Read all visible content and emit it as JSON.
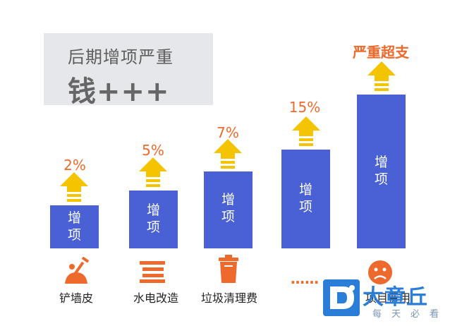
{
  "title": {
    "line1": "后期增项严重",
    "line2": "钱+++"
  },
  "colors": {
    "bar": "#4961d4",
    "arrow": "#f5c400",
    "accent": "#ee6a2c",
    "watermark": "#2b7ed8"
  },
  "bars": [
    {
      "label_line1": "增",
      "label_line2": "项",
      "percent": "2%"
    },
    {
      "label_line1": "增",
      "label_line2": "项",
      "percent": "5%"
    },
    {
      "label_line1": "增",
      "label_line2": "项",
      "percent": "7%"
    },
    {
      "label_line1": "增",
      "label_line2": "项",
      "percent": "15%"
    },
    {
      "label_line1": "增",
      "label_line2": "项",
      "percent": "严重超支"
    }
  ],
  "categories": [
    {
      "label": "铲墙皮",
      "icon": "shovel-icon"
    },
    {
      "label": "水电改造",
      "icon": "radiator-icon"
    },
    {
      "label": "垃圾清理费",
      "icon": "trash-can-icon"
    },
    {
      "label": "……",
      "icon": ""
    },
    {
      "label": "项目费用",
      "icon": "sad-face-icon"
    }
  ],
  "watermark": {
    "name": "大章丘",
    "slogan": "每天必看"
  }
}
